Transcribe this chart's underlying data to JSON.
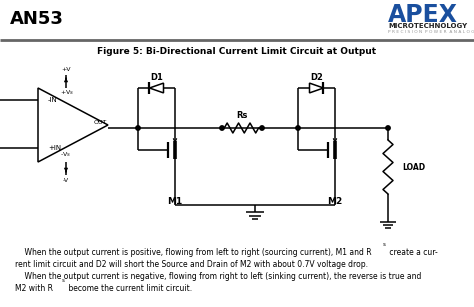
{
  "title_an": "AN53",
  "figure_title": "Figure 5: Bi-Directional Current Limit Circuit at Output",
  "body_text_line1": "    When the output current is positive, flowing from left to right (sourcing current), M1 and R",
  "body_text_line1c": " create a cur-",
  "body_text_line2": "rent limit circuit and D2 will short the Source and Drain of M2 with about 0.7V voltage drop.",
  "body_text_line3": "    When the output current is negative, flowing from right to left (sinking current), the reverse is true and",
  "body_text_line4": "M2 with R",
  "body_text_line4c": " become the current limit circuit.",
  "bg_color": "#ffffff",
  "title_color": "#000000",
  "line_color": "#000000",
  "apex_blue": "#1a4f9e",
  "header_bar_color": "#555555"
}
